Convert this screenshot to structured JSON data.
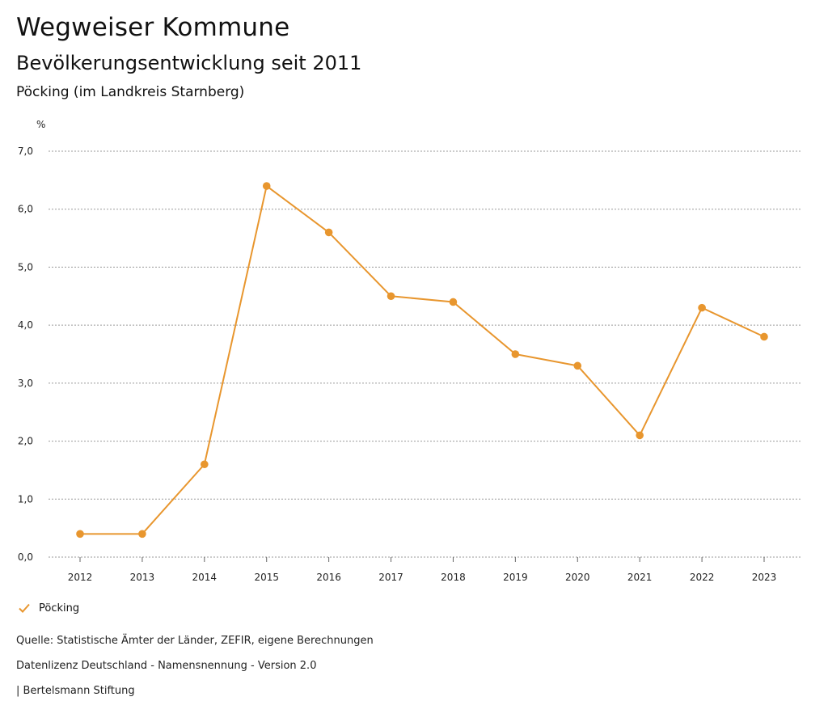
{
  "header": {
    "title": "Wegweiser Kommune",
    "subtitle": "Bevölkerungsentwicklung seit 2011",
    "region": "Pöcking (im Landkreis Starnberg)"
  },
  "chart_data": {
    "type": "line",
    "unit_label": "%",
    "x": [
      "2012",
      "2013",
      "2014",
      "2015",
      "2016",
      "2017",
      "2018",
      "2019",
      "2020",
      "2021",
      "2022",
      "2023"
    ],
    "series": [
      {
        "name": "Pöcking",
        "color": "#E8962E",
        "values": [
          0.4,
          0.4,
          1.6,
          6.4,
          5.6,
          4.5,
          4.4,
          3.5,
          3.3,
          2.1,
          4.3,
          3.8
        ]
      }
    ],
    "ylim": [
      0,
      7
    ],
    "yticks": [
      "0,0",
      "1,0",
      "2,0",
      "3,0",
      "4,0",
      "5,0",
      "6,0",
      "7,0"
    ],
    "grid": true,
    "legend_placement": "bottom-left"
  },
  "legend": {
    "label": "Pöcking",
    "icon": "check-icon"
  },
  "footer": {
    "source": "Quelle: Statistische Ämter der Länder, ZEFIR, eigene Berechnungen",
    "license": "Datenlizenz Deutschland - Namensnennung - Version 2.0",
    "publisher": "| Bertelsmann Stiftung"
  }
}
